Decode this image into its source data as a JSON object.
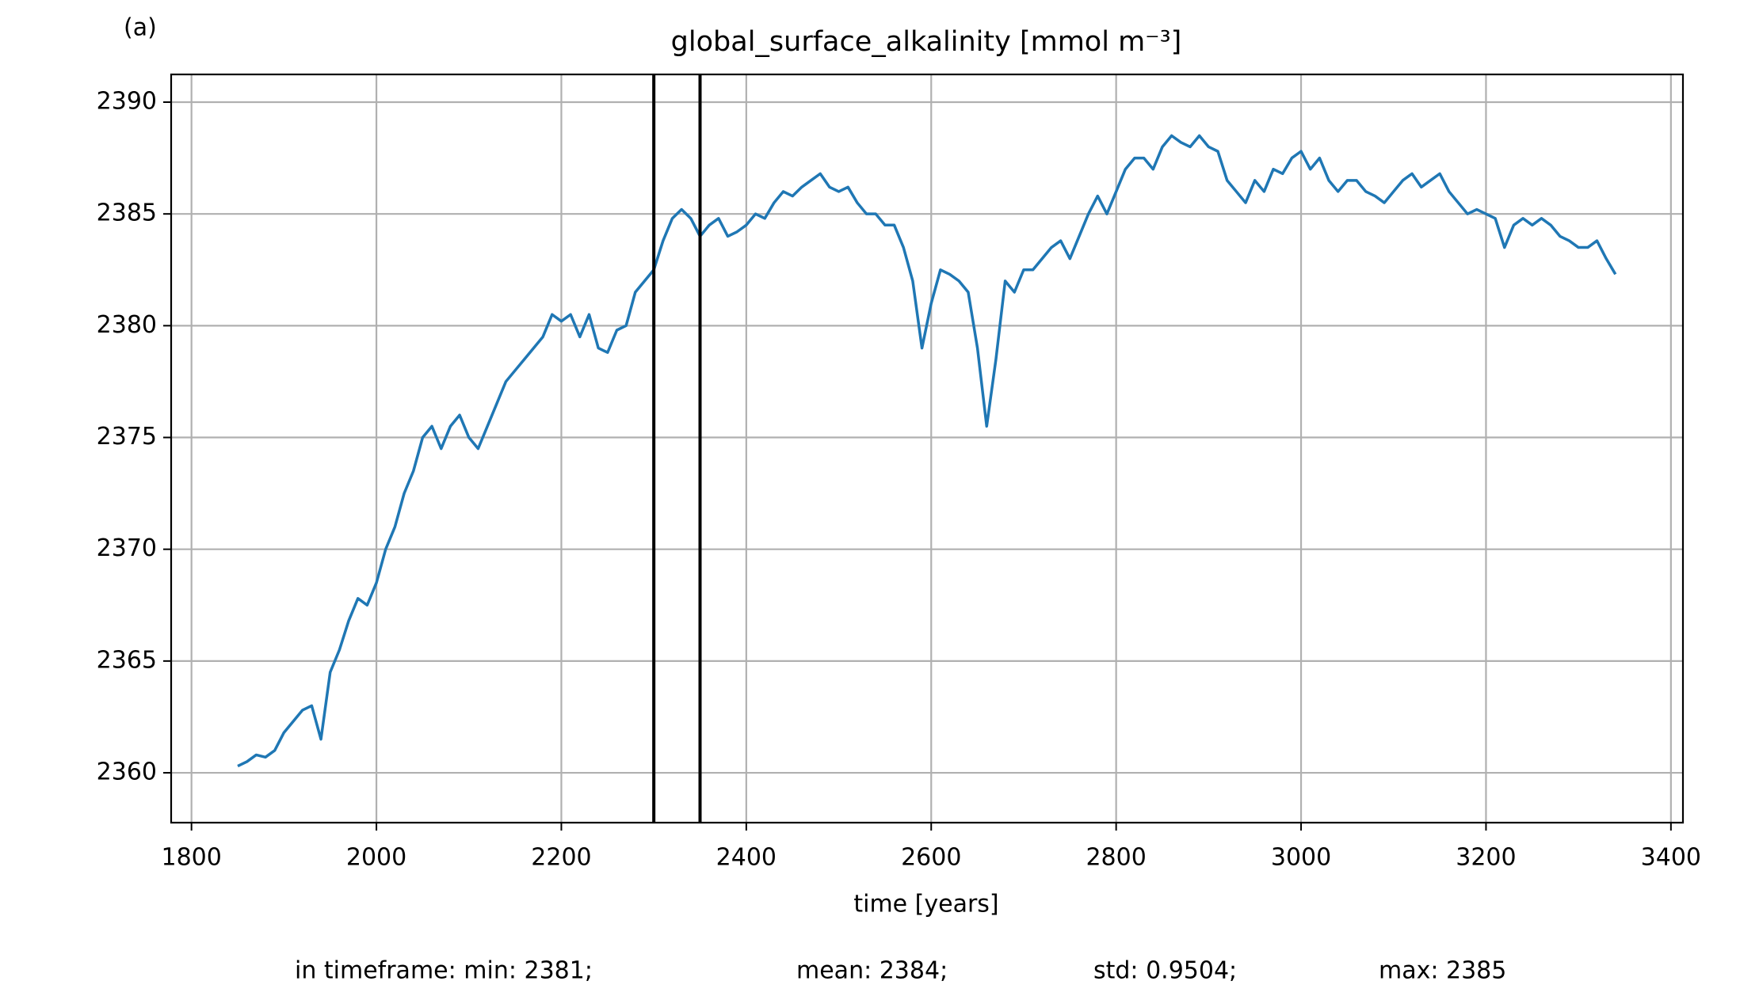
{
  "chart_data": {
    "type": "line",
    "panel_label": "(a)",
    "title": "global_surface_alkalinity [mmol m⁻³]",
    "x_label": "time [years]",
    "stats": [
      "in timeframe: min: 2381;",
      "mean: 2384;",
      "std: 0.9504;",
      "max: 2385"
    ],
    "x": [
      1850,
      1860,
      1870,
      1880,
      1890,
      1900,
      1910,
      1920,
      1930,
      1940,
      1950,
      1960,
      1970,
      1980,
      1990,
      2000,
      2010,
      2020,
      2030,
      2040,
      2050,
      2060,
      2070,
      2080,
      2090,
      2100,
      2110,
      2120,
      2130,
      2140,
      2150,
      2160,
      2170,
      2180,
      2190,
      2200,
      2210,
      2220,
      2230,
      2240,
      2250,
      2260,
      2270,
      2280,
      2290,
      2300,
      2310,
      2320,
      2330,
      2340,
      2350,
      2360,
      2370,
      2380,
      2390,
      2400,
      2410,
      2420,
      2430,
      2440,
      2450,
      2460,
      2470,
      2480,
      2490,
      2500,
      2510,
      2520,
      2530,
      2540,
      2550,
      2560,
      2570,
      2580,
      2590,
      2600,
      2610,
      2620,
      2630,
      2640,
      2650,
      2660,
      2670,
      2680,
      2690,
      2700,
      2710,
      2720,
      2730,
      2740,
      2750,
      2760,
      2770,
      2780,
      2790,
      2800,
      2810,
      2820,
      2830,
      2840,
      2850,
      2860,
      2870,
      2880,
      2890,
      2900,
      2910,
      2920,
      2930,
      2940,
      2950,
      2960,
      2970,
      2980,
      2990,
      3000,
      3010,
      3020,
      3030,
      3040,
      3050,
      3060,
      3070,
      3080,
      3090,
      3100,
      3110,
      3120,
      3130,
      3140,
      3150,
      3160,
      3170,
      3180,
      3190,
      3200,
      3210,
      3220,
      3230,
      3240,
      3250,
      3260,
      3270,
      3280,
      3290,
      3300,
      3310,
      3320,
      3330,
      3340
    ],
    "series": [
      {
        "name": "global_surface_alkalinity",
        "color": "#1f77b4",
        "values": [
          2360.3,
          2360.5,
          2360.8,
          2360.7,
          2361.0,
          2361.8,
          2362.3,
          2362.8,
          2363.0,
          2361.5,
          2364.5,
          2365.5,
          2366.8,
          2367.8,
          2367.5,
          2368.5,
          2370.0,
          2371.0,
          2372.5,
          2373.5,
          2375.0,
          2375.5,
          2374.5,
          2375.5,
          2376.0,
          2375.0,
          2374.5,
          2375.5,
          2376.5,
          2377.5,
          2378.0,
          2378.5,
          2379.0,
          2379.5,
          2380.5,
          2380.2,
          2380.5,
          2379.5,
          2380.5,
          2379.0,
          2378.8,
          2379.8,
          2380.0,
          2381.5,
          2382.0,
          2382.5,
          2383.8,
          2384.8,
          2385.2,
          2384.8,
          2384.0,
          2384.5,
          2384.8,
          2384.0,
          2384.2,
          2384.5,
          2385.0,
          2384.8,
          2385.5,
          2386.0,
          2385.8,
          2386.2,
          2386.5,
          2386.8,
          2386.2,
          2386.0,
          2386.2,
          2385.5,
          2385.0,
          2385.0,
          2384.5,
          2384.5,
          2383.5,
          2382.0,
          2379.0,
          2381.0,
          2382.5,
          2382.3,
          2382.0,
          2381.5,
          2379.0,
          2375.5,
          2378.5,
          2382.0,
          2381.5,
          2382.5,
          2382.5,
          2383.0,
          2383.5,
          2383.8,
          2383.0,
          2384.0,
          2385.0,
          2385.8,
          2385.0,
          2386.0,
          2387.0,
          2387.5,
          2387.5,
          2387.0,
          2388.0,
          2388.5,
          2388.2,
          2388.0,
          2388.5,
          2388.0,
          2387.8,
          2386.5,
          2386.0,
          2385.5,
          2386.5,
          2386.0,
          2387.0,
          2386.8,
          2387.5,
          2387.8,
          2387.0,
          2387.5,
          2386.5,
          2386.0,
          2386.5,
          2386.5,
          2386.0,
          2385.8,
          2385.5,
          2386.0,
          2386.5,
          2386.8,
          2386.2,
          2386.5,
          2386.8,
          2386.0,
          2385.5,
          2385.0,
          2385.2,
          2385.0,
          2384.8,
          2383.5,
          2384.5,
          2384.8,
          2384.5,
          2384.8,
          2384.5,
          2384.0,
          2383.8,
          2383.5,
          2383.5,
          2383.8,
          2383.0,
          2382.3
        ]
      }
    ],
    "vlines": [
      2300,
      2350
    ],
    "vline_color": "#000000",
    "xlim": [
      1778,
      3413
    ],
    "xticks": [
      1800,
      2000,
      2200,
      2400,
      2600,
      2800,
      3000,
      3200,
      3400
    ],
    "ylim": [
      2357.77,
      2391.24
    ],
    "yticks": [
      2360,
      2365,
      2370,
      2375,
      2380,
      2385,
      2390
    ],
    "grid": true
  }
}
